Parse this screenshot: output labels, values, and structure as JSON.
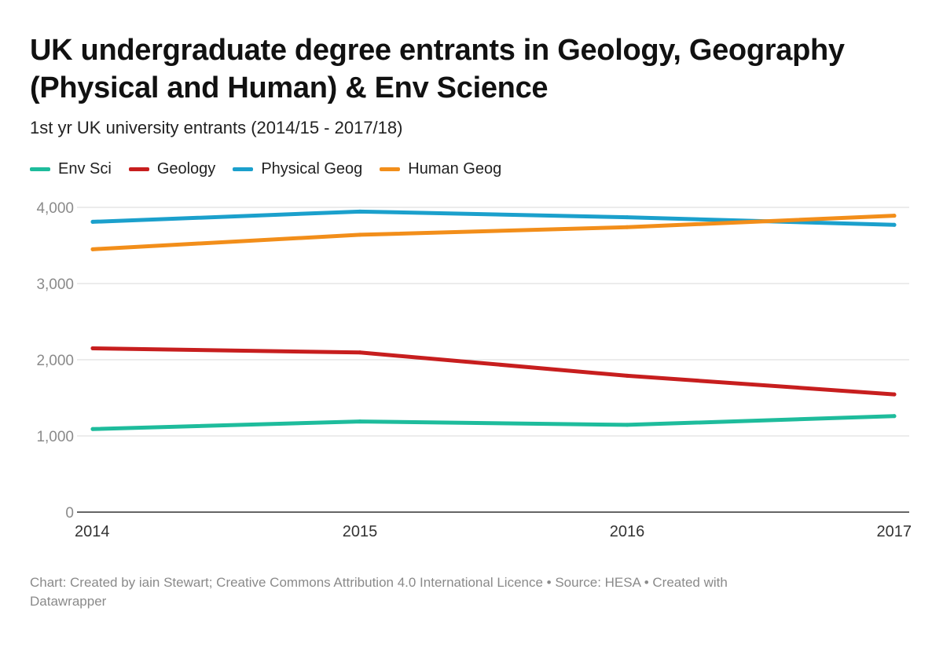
{
  "chart_data": {
    "type": "line",
    "title": "UK undergraduate degree entrants in Geology, Geography (Physical and Human) & Env Science",
    "subtitle": "1st yr UK university entrants (2014/15 - 2017/18)",
    "xlabel": "",
    "ylabel": "",
    "x": [
      "2014",
      "2015",
      "2016",
      "2017"
    ],
    "ylim": [
      0,
      4000
    ],
    "yticks": [
      0,
      1000,
      2000,
      3000,
      4000
    ],
    "ytick_labels": [
      "0",
      "1,000",
      "2,000",
      "3,000",
      "4,000"
    ],
    "grid": true,
    "legend_position": "top-left",
    "series": [
      {
        "name": "Env Sci",
        "color": "#1ebc9c",
        "values": [
          1090,
          1190,
          1145,
          1260
        ]
      },
      {
        "name": "Geology",
        "color": "#c71e1e",
        "values": [
          2150,
          2095,
          1790,
          1545
        ]
      },
      {
        "name": "Physical Geog",
        "color": "#1ba0cc",
        "values": [
          3810,
          3945,
          3870,
          3770
        ]
      },
      {
        "name": "Human Geog",
        "color": "#f28e1a",
        "values": [
          3450,
          3640,
          3740,
          3890
        ]
      }
    ]
  },
  "footer": {
    "text": "Chart: Created by iain Stewart; Creative Commons Attribution 4.0 International Licence • Source: HESA • Created with Datawrapper"
  }
}
